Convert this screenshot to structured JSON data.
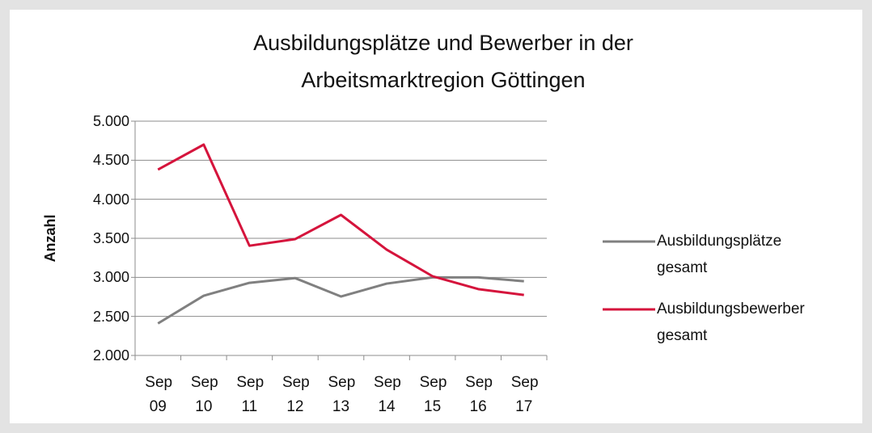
{
  "chart_data": {
    "type": "line",
    "title": "Ausbildungsplätze und Bewerber in der Arbeitsmarktregion Göttingen",
    "y_label": "Anzahl",
    "categories": [
      "Sep 09",
      "Sep 10",
      "Sep 11",
      "Sep 12",
      "Sep 13",
      "Sep 14",
      "Sep 15",
      "Sep 16",
      "Sep 17"
    ],
    "series": [
      {
        "name": "Ausbildungsplätze gesamt",
        "color": "#808080",
        "values": [
          2410,
          2765,
          2930,
          2990,
          2755,
          2920,
          3000,
          3000,
          2950
        ]
      },
      {
        "name": "Ausbildungsbewerber gesamt",
        "color": "#d5143c",
        "values": [
          4380,
          4700,
          3405,
          3490,
          3800,
          3355,
          3015,
          2850,
          2775
        ]
      }
    ],
    "ylim": [
      2000,
      5000
    ],
    "yticks": [
      {
        "value": 2000,
        "label": "2.000"
      },
      {
        "value": 2500,
        "label": "2.500"
      },
      {
        "value": 3000,
        "label": "3.000"
      },
      {
        "value": 3500,
        "label": "3.500"
      },
      {
        "value": 4000,
        "label": "4.000"
      },
      {
        "value": 4500,
        "label": "4.500"
      },
      {
        "value": 5000,
        "label": "5.000"
      }
    ],
    "grid": true,
    "legend": "right"
  }
}
